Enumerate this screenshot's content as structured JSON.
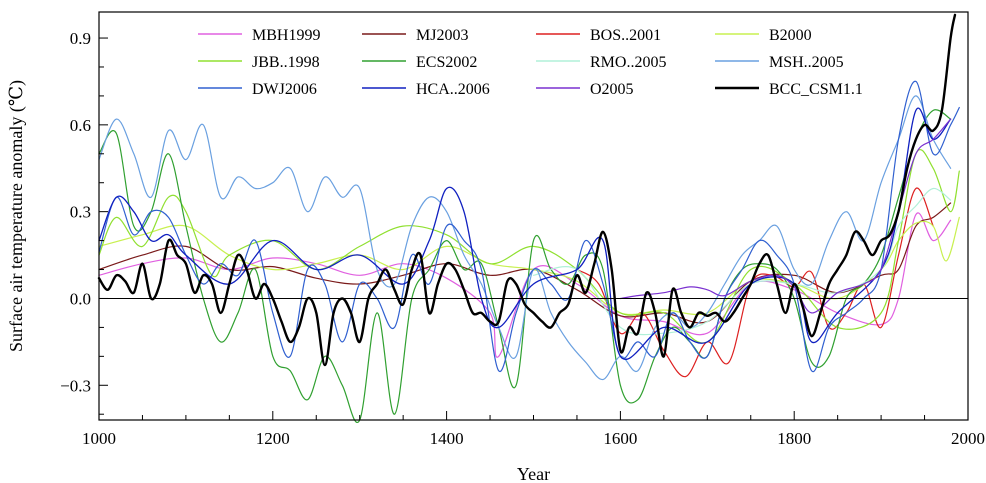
{
  "chart_data": {
    "type": "line",
    "title": "",
    "xlabel": "Year",
    "ylabel": "Surface air temperature anomaly (℃)",
    "xlim": [
      1000,
      2000
    ],
    "ylim": [
      -0.42,
      0.99
    ],
    "xticks": [
      "1000",
      "1200",
      "1400",
      "1600",
      "1800",
      "2000"
    ],
    "xtick_values": [
      1000,
      1200,
      1400,
      1600,
      1800,
      2000
    ],
    "yticks": [
      "−0.3",
      "0.0",
      "0.3",
      "0.6",
      "0.9"
    ],
    "ytick_values": [
      -0.3,
      0.0,
      0.3,
      0.6,
      0.9
    ],
    "grid": false,
    "zero_line": true,
    "legend_position": "top",
    "series": [
      {
        "name": "MBH1999",
        "color": "#e060e0",
        "width": 1.2,
        "x": [
          1000,
          1050,
          1100,
          1150,
          1200,
          1250,
          1300,
          1350,
          1400,
          1450,
          1460,
          1500,
          1550,
          1600,
          1650,
          1700,
          1750,
          1800,
          1850,
          1900,
          1920,
          1940,
          1960,
          1980
        ],
        "values": [
          0.08,
          0.12,
          0.14,
          0.1,
          0.14,
          0.12,
          0.08,
          0.12,
          0.07,
          -0.05,
          -0.2,
          0.1,
          0.05,
          -0.06,
          -0.08,
          -0.12,
          0.05,
          0.03,
          -0.05,
          -0.09,
          0.0,
          0.29,
          0.2,
          0.27
        ]
      },
      {
        "name": "MJ2003",
        "color": "#7a1a1a",
        "width": 1.2,
        "x": [
          1000,
          1050,
          1100,
          1150,
          1200,
          1250,
          1300,
          1350,
          1400,
          1450,
          1500,
          1550,
          1600,
          1650,
          1700,
          1750,
          1800,
          1850,
          1900,
          1920,
          1940,
          1960,
          1980
        ],
        "values": [
          0.1,
          0.15,
          0.18,
          0.1,
          0.11,
          0.07,
          0.05,
          0.08,
          0.12,
          0.08,
          0.1,
          0.03,
          -0.06,
          -0.05,
          -0.08,
          0.06,
          0.08,
          0.02,
          0.08,
          0.1,
          0.25,
          0.28,
          0.33
        ]
      },
      {
        "name": "BOS..2001",
        "color": "#dd2020",
        "width": 1.2,
        "x": [
          1550,
          1575,
          1600,
          1625,
          1650,
          1675,
          1700,
          1725,
          1750,
          1775,
          1800,
          1820,
          1840,
          1860,
          1880,
          1900,
          1920,
          1940,
          1960
        ],
        "values": [
          0.1,
          0.05,
          -0.12,
          -0.05,
          -0.18,
          -0.27,
          -0.15,
          -0.22,
          0.05,
          0.08,
          0.04,
          0.09,
          -0.1,
          -0.05,
          0.05,
          -0.1,
          0.15,
          0.38,
          0.25
        ]
      },
      {
        "name": "B2000",
        "color": "#c8f050",
        "width": 1.2,
        "x": [
          1000,
          1050,
          1100,
          1150,
          1200,
          1250,
          1300,
          1350,
          1400,
          1450,
          1500,
          1550,
          1600,
          1650,
          1700,
          1750,
          1800,
          1850,
          1900,
          1920,
          1940,
          1960,
          1975,
          1990
        ],
        "values": [
          0.18,
          0.22,
          0.25,
          0.15,
          0.1,
          0.12,
          0.15,
          0.1,
          0.18,
          0.12,
          0.1,
          0.06,
          -0.05,
          -0.04,
          -0.05,
          0.06,
          0.05,
          0.0,
          0.1,
          0.2,
          0.26,
          0.25,
          0.13,
          0.28
        ]
      },
      {
        "name": "JBB..1998",
        "color": "#90e030",
        "width": 1.2,
        "x": [
          1000,
          1020,
          1050,
          1080,
          1100,
          1130,
          1150,
          1200,
          1250,
          1300,
          1350,
          1400,
          1450,
          1500,
          1550,
          1600,
          1650,
          1700,
          1750,
          1800,
          1850,
          1900,
          1920,
          1940,
          1960,
          1980,
          1990
        ],
        "values": [
          0.15,
          0.28,
          0.18,
          0.35,
          0.3,
          0.08,
          0.15,
          0.2,
          0.1,
          0.18,
          0.25,
          0.22,
          0.12,
          0.18,
          0.1,
          -0.05,
          -0.05,
          -0.15,
          0.1,
          0.05,
          -0.1,
          -0.05,
          0.2,
          0.5,
          0.45,
          0.3,
          0.44
        ]
      },
      {
        "name": "ECS2002",
        "color": "#30a030",
        "width": 1.2,
        "x": [
          1000,
          1020,
          1040,
          1060,
          1080,
          1100,
          1120,
          1140,
          1160,
          1180,
          1200,
          1220,
          1240,
          1260,
          1280,
          1300,
          1320,
          1340,
          1360,
          1380,
          1400,
          1420,
          1440,
          1460,
          1480,
          1500,
          1520,
          1540,
          1560,
          1580,
          1600,
          1620,
          1640,
          1660,
          1680,
          1700,
          1720,
          1740,
          1760,
          1780,
          1800,
          1820,
          1840,
          1860,
          1880,
          1900,
          1920,
          1940,
          1960,
          1980
        ],
        "values": [
          0.5,
          0.57,
          0.25,
          0.3,
          0.5,
          0.25,
          0.0,
          -0.15,
          -0.05,
          0.1,
          -0.2,
          -0.25,
          -0.35,
          -0.2,
          -0.3,
          -0.42,
          -0.05,
          -0.4,
          0.0,
          0.1,
          0.2,
          0.1,
          0.12,
          -0.1,
          -0.3,
          0.2,
          0.1,
          0.05,
          0.15,
          0.1,
          -0.3,
          -0.35,
          -0.2,
          -0.1,
          -0.15,
          -0.2,
          0.0,
          0.1,
          0.12,
          0.1,
          0.0,
          -0.22,
          -0.2,
          0.0,
          0.05,
          0.15,
          0.35,
          0.55,
          0.65,
          0.62
        ]
      },
      {
        "name": "RMO..2005",
        "color": "#b0f0d8",
        "width": 1.2,
        "x": [
          1500,
          1550,
          1600,
          1650,
          1700,
          1750,
          1800,
          1850,
          1900,
          1920,
          1940,
          1960,
          1980
        ],
        "values": [
          0.08,
          0.1,
          -0.1,
          -0.12,
          -0.08,
          0.05,
          0.05,
          0.02,
          0.1,
          0.25,
          0.32,
          0.38,
          0.34
        ]
      },
      {
        "name": "MSH..2005",
        "color": "#6aa0e0",
        "width": 1.2,
        "x": [
          1000,
          1020,
          1040,
          1060,
          1080,
          1100,
          1120,
          1140,
          1160,
          1180,
          1200,
          1220,
          1240,
          1260,
          1280,
          1300,
          1320,
          1340,
          1360,
          1380,
          1400,
          1420,
          1440,
          1460,
          1480,
          1500,
          1520,
          1540,
          1560,
          1580,
          1600,
          1620,
          1640,
          1660,
          1680,
          1700,
          1720,
          1740,
          1760,
          1780,
          1800,
          1820,
          1840,
          1860,
          1880,
          1900,
          1920,
          1940,
          1960,
          1980
        ],
        "values": [
          0.48,
          0.62,
          0.5,
          0.35,
          0.58,
          0.48,
          0.6,
          0.35,
          0.42,
          0.38,
          0.4,
          0.45,
          0.3,
          0.42,
          0.35,
          0.38,
          0.1,
          0.05,
          0.25,
          0.35,
          0.3,
          0.15,
          0.05,
          -0.1,
          -0.2,
          0.1,
          -0.05,
          -0.15,
          -0.22,
          -0.28,
          -0.2,
          -0.25,
          -0.1,
          -0.05,
          -0.1,
          -0.05,
          0.05,
          0.15,
          0.2,
          0.25,
          0.1,
          0.05,
          0.2,
          0.3,
          0.2,
          0.4,
          0.55,
          0.7,
          0.55,
          0.45
        ]
      },
      {
        "name": "DWJ2006",
        "color": "#3060d0",
        "width": 1.2,
        "x": [
          1000,
          1020,
          1040,
          1060,
          1080,
          1100,
          1120,
          1140,
          1160,
          1180,
          1200,
          1220,
          1240,
          1260,
          1280,
          1300,
          1320,
          1340,
          1360,
          1380,
          1400,
          1420,
          1440,
          1460,
          1480,
          1500,
          1520,
          1540,
          1560,
          1580,
          1600,
          1620,
          1640,
          1660,
          1680,
          1700,
          1720,
          1740,
          1760,
          1780,
          1800,
          1820,
          1840,
          1860,
          1880,
          1900,
          1920,
          1940,
          1960,
          1980,
          1990
        ],
        "values": [
          0.16,
          0.35,
          0.22,
          0.3,
          0.28,
          0.15,
          0.05,
          0.12,
          0.08,
          0.2,
          -0.05,
          -0.2,
          0.1,
          0.05,
          -0.15,
          0.05,
          0.0,
          -0.1,
          0.15,
          0.05,
          0.25,
          0.2,
          0.1,
          -0.25,
          -0.05,
          0.1,
          0.05,
          0.0,
          0.2,
          0.05,
          -0.2,
          -0.15,
          -0.2,
          -0.05,
          -0.15,
          -0.2,
          0.0,
          0.1,
          0.2,
          0.15,
          0.05,
          -0.25,
          -0.1,
          -0.05,
          0.0,
          0.1,
          0.55,
          0.75,
          0.5,
          0.6,
          0.66
        ]
      },
      {
        "name": "HCA..2006",
        "color": "#1020c0",
        "width": 1.3,
        "x": [
          1000,
          1020,
          1040,
          1060,
          1080,
          1100,
          1150,
          1200,
          1250,
          1300,
          1350,
          1380,
          1400,
          1420,
          1440,
          1460,
          1500,
          1550,
          1580,
          1600,
          1650,
          1700,
          1750,
          1800,
          1820,
          1850,
          1900,
          1920,
          1940,
          1960,
          1980
        ],
        "values": [
          0.2,
          0.35,
          0.3,
          0.2,
          0.22,
          0.15,
          0.05,
          0.2,
          0.1,
          0.15,
          0.05,
          0.2,
          0.38,
          0.3,
          0.0,
          -0.1,
          0.05,
          0.1,
          0.2,
          -0.2,
          -0.1,
          -0.15,
          0.05,
          0.05,
          -0.15,
          -0.05,
          0.1,
          0.3,
          0.65,
          0.55,
          0.62
        ]
      },
      {
        "name": "O2005",
        "color": "#7a30d0",
        "width": 1.2,
        "x": [
          1600,
          1620,
          1650,
          1680,
          1700,
          1720,
          1750,
          1780,
          1800,
          1820,
          1850,
          1880,
          1900,
          1920,
          1940,
          1960,
          1980
        ],
        "values": [
          0.0,
          0.01,
          0.02,
          0.04,
          0.03,
          0.01,
          0.06,
          0.08,
          0.04,
          -0.05,
          0.02,
          0.05,
          0.1,
          0.3,
          0.5,
          0.55,
          0.62
        ]
      },
      {
        "name": "BCC_CSM1.1",
        "color": "#000000",
        "width": 2.4,
        "x": [
          1000,
          1010,
          1020,
          1030,
          1040,
          1050,
          1060,
          1070,
          1080,
          1090,
          1100,
          1110,
          1120,
          1130,
          1140,
          1150,
          1160,
          1170,
          1180,
          1190,
          1200,
          1210,
          1220,
          1230,
          1240,
          1250,
          1260,
          1270,
          1280,
          1290,
          1300,
          1310,
          1320,
          1330,
          1340,
          1350,
          1360,
          1370,
          1380,
          1390,
          1400,
          1410,
          1420,
          1430,
          1440,
          1450,
          1460,
          1470,
          1480,
          1490,
          1500,
          1510,
          1520,
          1530,
          1540,
          1550,
          1560,
          1570,
          1580,
          1590,
          1600,
          1610,
          1620,
          1630,
          1640,
          1650,
          1660,
          1670,
          1680,
          1690,
          1700,
          1710,
          1720,
          1730,
          1740,
          1750,
          1760,
          1770,
          1780,
          1790,
          1800,
          1810,
          1820,
          1830,
          1840,
          1850,
          1860,
          1870,
          1880,
          1890,
          1900,
          1910,
          1920,
          1930,
          1940,
          1950,
          1960,
          1970,
          1980,
          1985
        ],
        "values": [
          0.07,
          0.03,
          0.08,
          0.06,
          0.02,
          0.12,
          0.0,
          0.05,
          0.2,
          0.15,
          0.12,
          0.02,
          0.08,
          0.05,
          -0.05,
          0.05,
          0.15,
          0.1,
          0.0,
          0.05,
          0.0,
          -0.08,
          -0.15,
          -0.1,
          0.0,
          -0.05,
          -0.23,
          -0.05,
          0.0,
          -0.05,
          -0.15,
          0.0,
          0.05,
          0.1,
          0.03,
          -0.02,
          0.1,
          0.15,
          -0.05,
          0.05,
          0.12,
          0.1,
          0.03,
          -0.05,
          -0.05,
          -0.08,
          -0.08,
          0.06,
          0.05,
          -0.02,
          -0.05,
          -0.08,
          -0.1,
          -0.05,
          -0.02,
          0.08,
          0.02,
          0.12,
          0.23,
          0.1,
          -0.18,
          -0.1,
          -0.12,
          0.02,
          -0.05,
          -0.2,
          0.03,
          -0.05,
          -0.1,
          -0.05,
          -0.06,
          -0.05,
          -0.08,
          -0.05,
          0.0,
          0.05,
          0.12,
          0.15,
          0.05,
          -0.05,
          0.05,
          -0.03,
          -0.13,
          -0.05,
          0.05,
          0.1,
          0.15,
          0.23,
          0.2,
          0.15,
          0.2,
          0.22,
          0.3,
          0.45,
          0.55,
          0.6,
          0.58,
          0.65,
          0.9,
          0.98
        ]
      }
    ]
  }
}
